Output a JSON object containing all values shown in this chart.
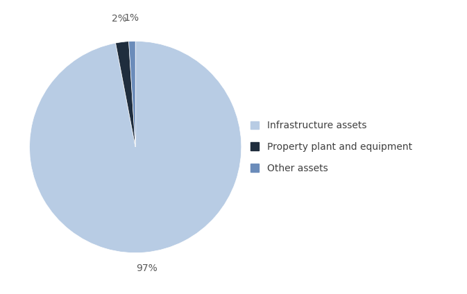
{
  "labels": [
    "Infrastructure assets",
    "Property plant and equipment",
    "Other assets"
  ],
  "values": [
    97,
    2,
    1
  ],
  "colors": [
    "#b8cce4",
    "#1f2d3d",
    "#6b8cba"
  ],
  "legend_labels": [
    "Infrastructure assets",
    "Property plant and equipment",
    "Other assets"
  ],
  "startangle": 90,
  "figsize": [
    6.73,
    4.24
  ],
  "dpi": 100,
  "label_fontsize": 10,
  "legend_fontsize": 10,
  "bg_color": "#ffffff",
  "label_color": "#595959",
  "text_color": "#404040"
}
